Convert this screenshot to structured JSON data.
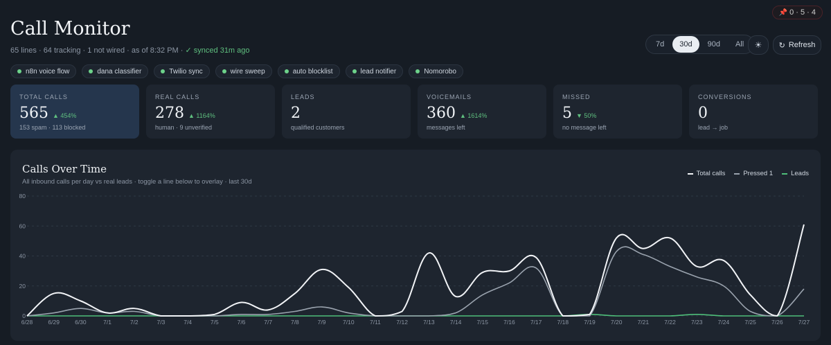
{
  "badge": {
    "icon": "pin-icon",
    "text": "0 · 5 · 4"
  },
  "header": {
    "title": "Call Monitor",
    "subtitle_main": "65 lines · 64 tracking · 1 not wired · as of 8:32 PM ·",
    "synced": "✓ synced 31m ago"
  },
  "range": {
    "options": [
      "7d",
      "30d",
      "90d",
      "All"
    ],
    "selected": "30d"
  },
  "refresh_label": "Refresh",
  "chips": [
    {
      "label": "n8n voice flow"
    },
    {
      "label": "dana classifier"
    },
    {
      "label": "Twilio sync"
    },
    {
      "label": "wire sweep"
    },
    {
      "label": "auto blocklist"
    },
    {
      "label": "lead notifier"
    },
    {
      "label": "Nomorobo"
    }
  ],
  "cards": [
    {
      "label": "TOTAL CALLS",
      "value": "565",
      "delta": "▲ 454%",
      "sub": "153 spam · 113 blocked"
    },
    {
      "label": "REAL CALLS",
      "value": "278",
      "delta": "▲ 1164%",
      "sub": "human · 9 unverified"
    },
    {
      "label": "LEADS",
      "value": "2",
      "delta": "",
      "sub": "qualified customers"
    },
    {
      "label": "VOICEMAILS",
      "value": "360",
      "delta": "▲ 1614%",
      "sub": "messages left"
    },
    {
      "label": "MISSED",
      "value": "5",
      "delta": "▼ 50%",
      "sub": "no message left"
    },
    {
      "label": "CONVERSIONS",
      "value": "0",
      "delta": "",
      "sub": "lead → job"
    }
  ],
  "chart": {
    "title": "Calls Over Time",
    "subtitle": "All inbound calls per day vs real leads · toggle a line below to overlay · last 30d"
  },
  "chart_data": {
    "type": "line",
    "x": [
      "6/28",
      "6/29",
      "6/30",
      "7/1",
      "7/2",
      "7/3",
      "7/4",
      "7/5",
      "7/6",
      "7/7",
      "7/8",
      "7/9",
      "7/10",
      "7/11",
      "7/12",
      "7/13",
      "7/14",
      "7/15",
      "7/16",
      "7/17",
      "7/18",
      "7/19",
      "7/20",
      "7/21",
      "7/22",
      "7/23",
      "7/24",
      "7/25",
      "7/26",
      "7/27"
    ],
    "y_ticks": [
      "0",
      "20",
      "40",
      "60",
      "80"
    ],
    "ylim": [
      0,
      80
    ],
    "series": [
      {
        "name": "Total calls",
        "color": "#f2f4f7",
        "values": [
          0,
          15,
          10,
          2,
          5,
          0,
          0,
          1,
          9,
          4,
          15,
          31,
          19,
          0,
          3,
          42,
          13,
          29,
          30,
          39,
          0,
          1,
          52,
          45,
          52,
          33,
          37,
          14,
          0,
          61
        ]
      },
      {
        "name": "Pressed 1",
        "color": "#9aa3ae",
        "values": [
          0,
          2,
          5,
          2,
          3,
          0,
          0,
          0,
          1,
          1,
          3,
          6,
          2,
          0,
          0,
          0,
          2,
          14,
          22,
          32,
          0,
          0,
          43,
          41,
          33,
          26,
          20,
          3,
          0,
          18
        ]
      },
      {
        "name": "Leads",
        "color": "#4fbf7a",
        "values": [
          0,
          0,
          0,
          0,
          0,
          0,
          0,
          0,
          0,
          0,
          0,
          0,
          0,
          0,
          0,
          0,
          0,
          0,
          0,
          0,
          0,
          1,
          0,
          0,
          0,
          1,
          0,
          0,
          0,
          0
        ]
      }
    ]
  }
}
